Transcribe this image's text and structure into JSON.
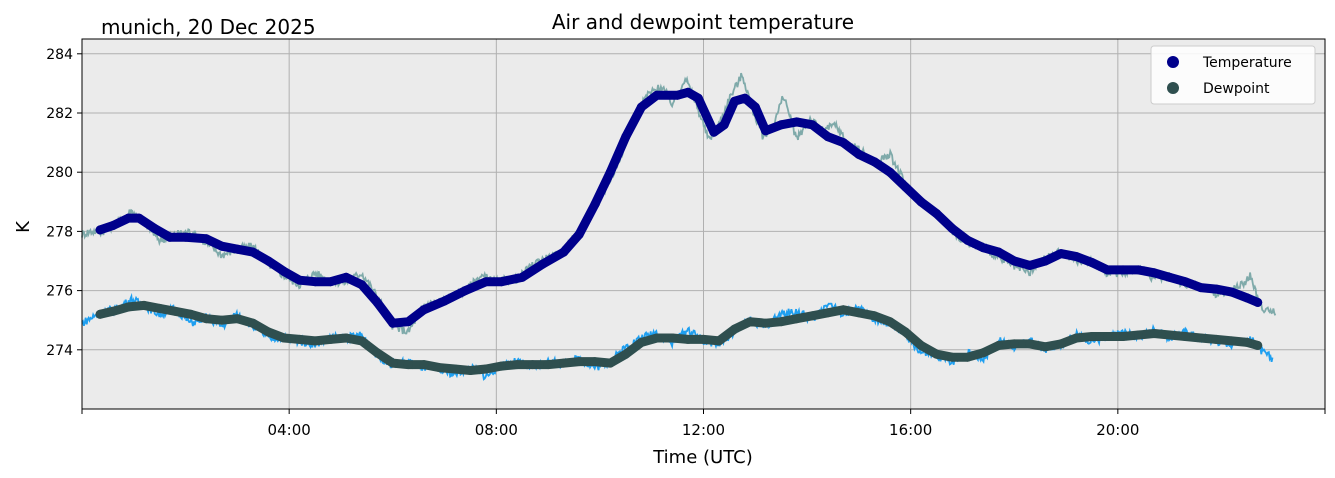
{
  "chart_data": {
    "type": "line",
    "title": "Air and dewpoint temperature",
    "subtitle": "munich, 20 Dec 2025",
    "xlabel": "Time (UTC)",
    "ylabel": "K",
    "xlim": [
      0,
      24
    ],
    "ylim": [
      272.0,
      284.5
    ],
    "xticks": [
      {
        "value": 4,
        "label": "04:00"
      },
      {
        "value": 8,
        "label": "08:00"
      },
      {
        "value": 12,
        "label": "12:00"
      },
      {
        "value": 16,
        "label": "16:00"
      },
      {
        "value": 20,
        "label": "20:00"
      }
    ],
    "yticks": [
      {
        "value": 274,
        "label": "274"
      },
      {
        "value": 276,
        "label": "276"
      },
      {
        "value": 278,
        "label": "278"
      },
      {
        "value": 280,
        "label": "280"
      },
      {
        "value": 282,
        "label": "282"
      },
      {
        "value": 284,
        "label": "284"
      }
    ],
    "grid": true,
    "legend_position": "top-right",
    "legend": [
      {
        "name": "Temperature",
        "color": "#00008b"
      },
      {
        "name": "Dewpoint",
        "color": "#2f4f4f"
      }
    ],
    "colors": {
      "temperature_smooth": "#00008b",
      "temperature_raw": "#7faaaa",
      "dewpoint_smooth": "#2f4f4f",
      "dewpoint_raw": "#1e9ff0",
      "plot_bg": "#ebebeb",
      "grid": "#b0b0b0"
    },
    "series": [
      {
        "name": "Temperature",
        "role": "smoothed",
        "x": [
          0.35,
          0.6,
          0.9,
          1.1,
          1.4,
          1.7,
          2.0,
          2.4,
          2.7,
          3.0,
          3.3,
          3.6,
          3.9,
          4.2,
          4.5,
          4.8,
          5.1,
          5.4,
          5.7,
          6.0,
          6.3,
          6.6,
          7.0,
          7.4,
          7.8,
          8.1,
          8.5,
          8.9,
          9.3,
          9.6,
          9.9,
          10.2,
          10.5,
          10.8,
          11.1,
          11.5,
          11.7,
          11.9,
          12.2,
          12.4,
          12.6,
          12.8,
          13.0,
          13.2,
          13.5,
          13.8,
          14.1,
          14.4,
          14.7,
          15.0,
          15.3,
          15.6,
          15.9,
          16.2,
          16.5,
          16.8,
          17.1,
          17.4,
          17.7,
          18.0,
          18.3,
          18.6,
          18.9,
          19.2,
          19.5,
          19.8,
          20.1,
          20.4,
          20.7,
          21.0,
          21.3,
          21.6,
          21.9,
          22.2,
          22.5,
          22.7
        ],
        "values": [
          278.05,
          278.2,
          278.45,
          278.45,
          278.1,
          277.8,
          277.8,
          277.75,
          277.5,
          277.4,
          277.3,
          277.0,
          276.65,
          276.35,
          276.3,
          276.3,
          276.45,
          276.2,
          275.6,
          274.9,
          274.95,
          275.35,
          275.65,
          276.0,
          276.3,
          276.3,
          276.45,
          276.9,
          277.3,
          277.9,
          278.9,
          280.0,
          281.2,
          282.2,
          282.6,
          282.6,
          282.7,
          282.5,
          281.35,
          281.6,
          282.4,
          282.5,
          282.2,
          281.4,
          281.6,
          281.7,
          281.6,
          281.2,
          281.0,
          280.6,
          280.35,
          280.0,
          279.5,
          279.0,
          278.6,
          278.1,
          277.7,
          277.45,
          277.3,
          277.0,
          276.85,
          277.0,
          277.25,
          277.15,
          276.95,
          276.7,
          276.7,
          276.7,
          276.6,
          276.45,
          276.3,
          276.1,
          276.05,
          275.95,
          275.75,
          275.6
        ]
      },
      {
        "name": "Temperature",
        "role": "raw",
        "x": [
          0.0,
          0.15,
          0.4,
          0.7,
          0.95,
          1.2,
          1.5,
          1.8,
          2.1,
          2.4,
          2.7,
          3.0,
          3.3,
          3.6,
          3.9,
          4.2,
          4.5,
          4.8,
          5.1,
          5.4,
          5.7,
          6.0,
          6.3,
          6.6,
          7.0,
          7.4,
          7.7,
          8.0,
          8.4,
          8.8,
          9.2,
          9.6,
          10.0,
          10.3,
          10.6,
          10.9,
          11.2,
          11.4,
          11.65,
          11.9,
          12.1,
          12.3,
          12.5,
          12.75,
          12.95,
          13.15,
          13.35,
          13.55,
          13.8,
          14.05,
          14.3,
          14.55,
          14.8,
          15.0,
          15.3,
          15.6,
          15.9,
          16.2,
          16.5,
          16.8,
          17.1,
          17.4,
          17.7,
          18.0,
          18.3,
          18.6,
          18.9,
          19.2,
          19.5,
          19.8,
          20.1,
          20.4,
          20.7,
          21.0,
          21.3,
          21.6,
          21.9,
          22.2,
          22.4,
          22.55,
          22.75,
          22.9,
          23.05
        ],
        "values": [
          277.9,
          278.0,
          278.0,
          278.3,
          278.7,
          278.3,
          277.7,
          277.9,
          278.0,
          277.6,
          277.2,
          277.4,
          277.5,
          276.9,
          276.5,
          276.2,
          276.6,
          276.3,
          276.3,
          276.6,
          275.8,
          274.8,
          274.6,
          275.5,
          275.7,
          276.0,
          276.5,
          276.3,
          276.4,
          277.0,
          277.2,
          278.0,
          279.1,
          280.1,
          281.5,
          282.6,
          282.9,
          282.3,
          283.2,
          282.1,
          281.1,
          281.6,
          282.5,
          283.3,
          282.1,
          281.2,
          281.6,
          282.6,
          281.1,
          281.8,
          281.4,
          281.6,
          280.9,
          280.8,
          280.3,
          280.6,
          279.6,
          279.0,
          278.6,
          278.0,
          277.6,
          277.5,
          277.1,
          276.8,
          276.6,
          277.1,
          277.3,
          277.0,
          277.0,
          276.6,
          276.6,
          276.8,
          276.4,
          276.5,
          276.2,
          276.2,
          275.9,
          276.0,
          276.2,
          276.5,
          275.5,
          275.3,
          275.3
        ]
      },
      {
        "name": "Dewpoint",
        "role": "smoothed",
        "x": [
          0.35,
          0.6,
          0.9,
          1.2,
          1.5,
          1.8,
          2.1,
          2.4,
          2.7,
          3.0,
          3.3,
          3.6,
          3.9,
          4.2,
          4.5,
          4.8,
          5.1,
          5.4,
          5.7,
          6.0,
          6.3,
          6.6,
          6.9,
          7.2,
          7.5,
          7.8,
          8.1,
          8.4,
          8.7,
          9.0,
          9.3,
          9.6,
          9.9,
          10.2,
          10.5,
          10.8,
          11.1,
          11.4,
          11.7,
          12.0,
          12.3,
          12.6,
          12.9,
          13.2,
          13.5,
          13.8,
          14.1,
          14.4,
          14.7,
          15.0,
          15.3,
          15.6,
          15.9,
          16.2,
          16.5,
          16.8,
          17.1,
          17.4,
          17.7,
          18.0,
          18.3,
          18.6,
          18.9,
          19.2,
          19.5,
          19.8,
          20.1,
          20.4,
          20.7,
          21.0,
          21.3,
          21.6,
          21.9,
          22.2,
          22.5,
          22.7
        ],
        "values": [
          275.2,
          275.3,
          275.45,
          275.5,
          275.4,
          275.3,
          275.2,
          275.05,
          275.0,
          275.05,
          274.9,
          274.6,
          274.4,
          274.35,
          274.3,
          274.35,
          274.4,
          274.3,
          273.9,
          273.55,
          273.5,
          273.5,
          273.4,
          273.35,
          273.3,
          273.35,
          273.45,
          273.5,
          273.5,
          273.5,
          273.55,
          273.6,
          273.6,
          273.55,
          273.85,
          274.25,
          274.4,
          274.4,
          274.35,
          274.35,
          274.3,
          274.7,
          274.95,
          274.9,
          274.95,
          275.05,
          275.15,
          275.25,
          275.35,
          275.25,
          275.15,
          274.95,
          274.6,
          274.15,
          273.85,
          273.75,
          273.75,
          273.9,
          274.15,
          274.2,
          274.2,
          274.1,
          274.2,
          274.4,
          274.45,
          274.45,
          274.45,
          274.5,
          274.55,
          274.5,
          274.45,
          274.4,
          274.35,
          274.3,
          274.25,
          274.15
        ]
      },
      {
        "name": "Dewpoint",
        "role": "raw",
        "x": [
          0.0,
          0.2,
          0.45,
          0.7,
          0.95,
          1.2,
          1.5,
          1.8,
          2.1,
          2.4,
          2.7,
          3.0,
          3.3,
          3.6,
          3.9,
          4.2,
          4.5,
          4.8,
          5.1,
          5.4,
          5.7,
          6.0,
          6.3,
          6.6,
          6.9,
          7.2,
          7.5,
          7.8,
          8.1,
          8.4,
          8.7,
          9.0,
          9.3,
          9.6,
          9.9,
          10.2,
          10.5,
          10.8,
          11.1,
          11.4,
          11.7,
          12.0,
          12.3,
          12.6,
          12.9,
          13.2,
          13.5,
          13.8,
          14.1,
          14.4,
          14.7,
          15.0,
          15.3,
          15.6,
          15.9,
          16.2,
          16.5,
          16.8,
          17.1,
          17.4,
          17.7,
          18.0,
          18.3,
          18.6,
          18.9,
          19.2,
          19.5,
          19.8,
          20.1,
          20.4,
          20.7,
          21.0,
          21.3,
          21.6,
          21.9,
          22.2,
          22.4,
          22.6,
          22.8,
          23.0
        ],
        "values": [
          274.9,
          275.1,
          275.3,
          275.4,
          275.7,
          275.5,
          275.2,
          275.4,
          274.9,
          275.1,
          274.8,
          275.2,
          274.8,
          274.4,
          274.4,
          274.3,
          274.2,
          274.4,
          274.4,
          274.5,
          273.8,
          273.5,
          273.6,
          273.4,
          273.3,
          273.2,
          273.4,
          273.1,
          273.5,
          273.6,
          273.4,
          273.6,
          273.5,
          273.7,
          273.4,
          273.6,
          274.1,
          274.4,
          274.6,
          274.2,
          274.7,
          274.3,
          274.2,
          274.6,
          275.0,
          274.8,
          275.2,
          275.3,
          275.0,
          275.6,
          275.2,
          275.4,
          275.0,
          274.9,
          274.5,
          273.9,
          273.8,
          273.6,
          273.9,
          273.7,
          274.3,
          274.1,
          274.3,
          274.0,
          274.2,
          274.5,
          274.3,
          274.4,
          274.6,
          274.4,
          274.7,
          274.4,
          274.6,
          274.4,
          274.3,
          274.2,
          274.4,
          274.3,
          273.9,
          273.7
        ]
      }
    ]
  }
}
